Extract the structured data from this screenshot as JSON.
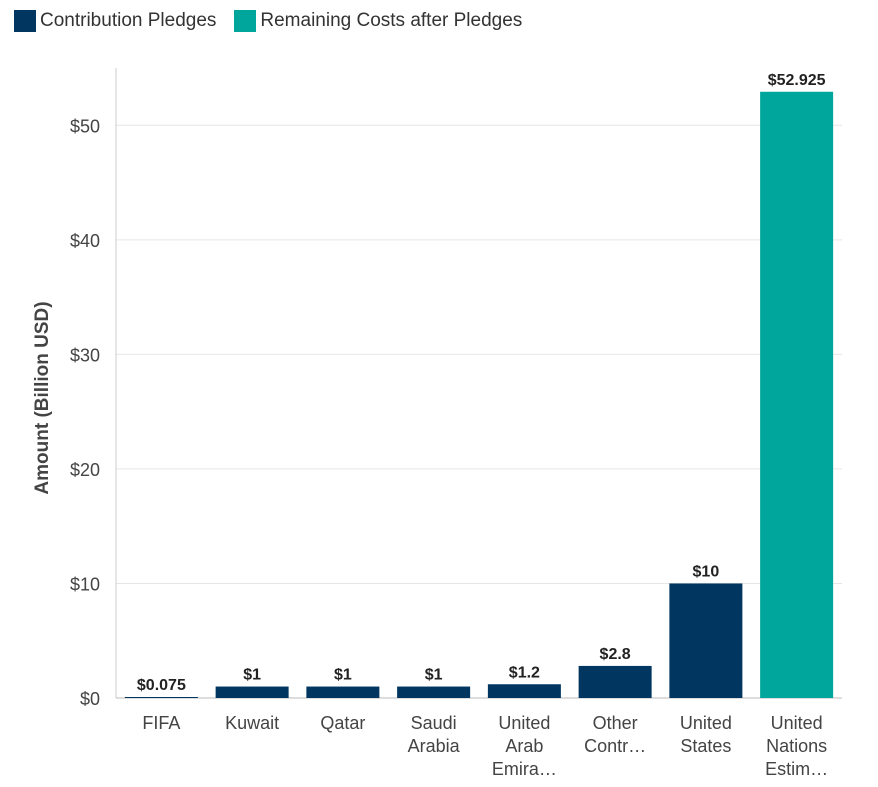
{
  "colors": {
    "pledge": "#00365f",
    "remaining": "#00a69c",
    "grid": "#e6e6e6",
    "axis_text": "#444444",
    "label_text": "#222222"
  },
  "legend": [
    {
      "label": "Contribution Pledges",
      "color": "#00365f"
    },
    {
      "label": "Remaining Costs after Pledges",
      "color": "#00a69c"
    }
  ],
  "chart_data": {
    "type": "bar",
    "ylabel": "Amount (Billion USD)",
    "ylim": [
      0,
      55
    ],
    "grid": true,
    "legend_position": "top-left",
    "yticks": [
      {
        "value": 0,
        "label": "$0"
      },
      {
        "value": 10,
        "label": "$10"
      },
      {
        "value": 20,
        "label": "$20"
      },
      {
        "value": 30,
        "label": "$30"
      },
      {
        "value": 40,
        "label": "$40"
      },
      {
        "value": 50,
        "label": "$50"
      }
    ],
    "categories": [
      [
        "FIFA"
      ],
      [
        "Kuwait"
      ],
      [
        "Qatar"
      ],
      [
        "Saudi",
        "Arabia"
      ],
      [
        "United",
        "Arab",
        "Emira…"
      ],
      [
        "Other",
        "Contr…"
      ],
      [
        "United",
        "States"
      ],
      [
        "United",
        "Nations",
        "Estim…"
      ]
    ],
    "values": [
      0.075,
      1,
      1,
      1,
      1.2,
      2.8,
      10,
      52.925
    ],
    "value_labels": [
      "$0.075",
      "$1",
      "$1",
      "$1",
      "$1.2",
      "$2.8",
      "$10",
      "$52.925"
    ],
    "series_of_bar": [
      "pledge",
      "pledge",
      "pledge",
      "pledge",
      "pledge",
      "pledge",
      "pledge",
      "remaining"
    ]
  }
}
